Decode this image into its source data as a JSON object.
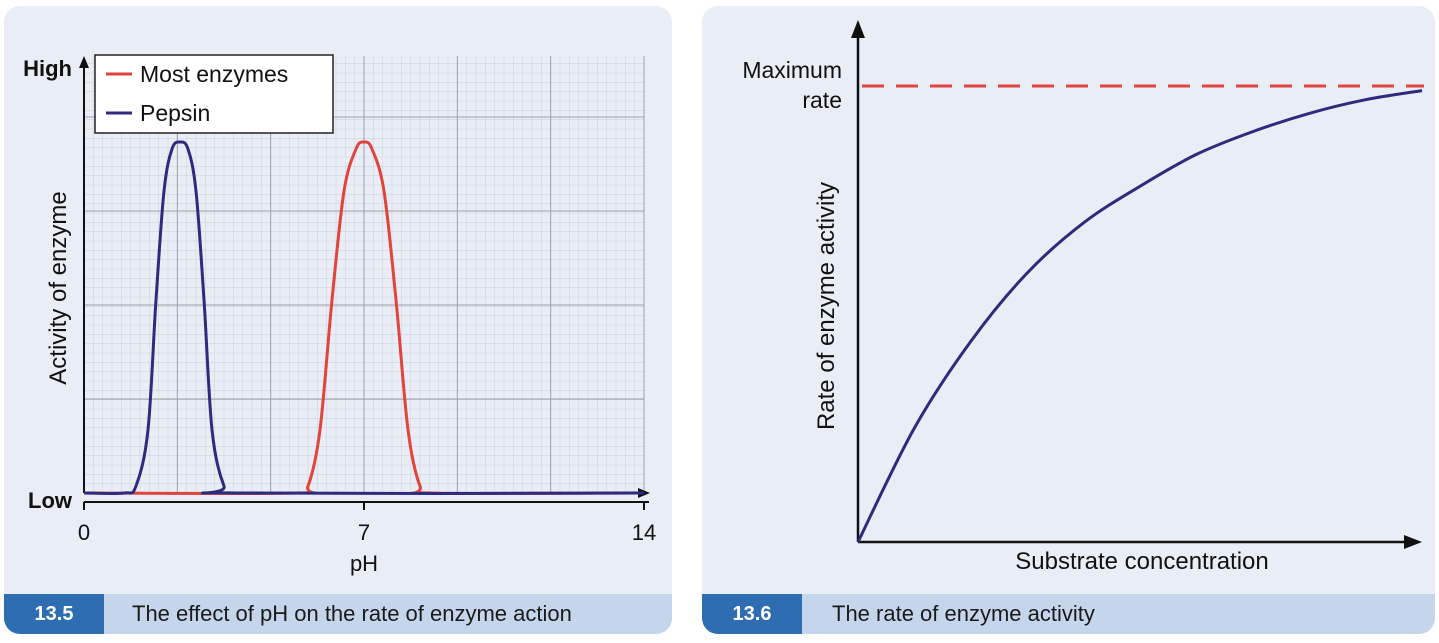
{
  "figure_left": {
    "caption_number": "13.5",
    "caption_text": "The effect of pH on the rate of enzyme action"
  },
  "figure_right": {
    "caption_number": "13.6",
    "caption_text": "The rate of enzyme activity"
  },
  "colors": {
    "red_series": "#e0443a",
    "blue_series": "#2e2a7e",
    "caption_number_bg": "#2f6db3",
    "caption_bg": "#c5d6ec",
    "panel_bg": "#e9edf5"
  },
  "chart_data": [
    {
      "type": "line",
      "xlabel": "pH",
      "ylabel": "Activity of enzyme",
      "y_high_label": "High",
      "y_low_label": "Low",
      "x_ticks": [
        "0",
        "7",
        "14"
      ],
      "xlim": [
        0,
        14
      ],
      "ylim": [
        0,
        1
      ],
      "grid": true,
      "legend_position": "top-left",
      "series": [
        {
          "name": "Most enzymes",
          "x": [
            0,
            5.3,
            5.6,
            5.9,
            6.2,
            6.5,
            6.8,
            7.0,
            7.2,
            7.5,
            7.8,
            8.1,
            8.4,
            8.7,
            14
          ],
          "y": [
            0,
            0,
            0.02,
            0.18,
            0.55,
            0.86,
            0.98,
            1.0,
            0.98,
            0.86,
            0.55,
            0.18,
            0.02,
            0,
            0
          ]
        },
        {
          "name": "Pepsin",
          "x": [
            0,
            1.0,
            1.3,
            1.6,
            1.8,
            2.0,
            2.2,
            2.4,
            2.6,
            2.8,
            3.0,
            3.2,
            3.5,
            3.8,
            14
          ],
          "y": [
            0,
            0,
            0.02,
            0.18,
            0.55,
            0.86,
            0.98,
            1.0,
            0.98,
            0.86,
            0.55,
            0.18,
            0.02,
            0,
            0
          ]
        }
      ]
    },
    {
      "type": "line",
      "xlabel": "Substrate concentration",
      "ylabel": "Rate of enzyme activity",
      "max_label_line1": "Maximum",
      "max_label_line2": "rate",
      "grid": false,
      "series": [
        {
          "x": [
            0,
            0.1,
            0.2,
            0.3,
            0.4,
            0.5,
            0.6,
            0.7,
            0.8,
            0.9,
            1.0
          ],
          "y": [
            0,
            0.25,
            0.44,
            0.59,
            0.7,
            0.78,
            0.85,
            0.9,
            0.94,
            0.97,
            0.99
          ]
        }
      ]
    }
  ]
}
